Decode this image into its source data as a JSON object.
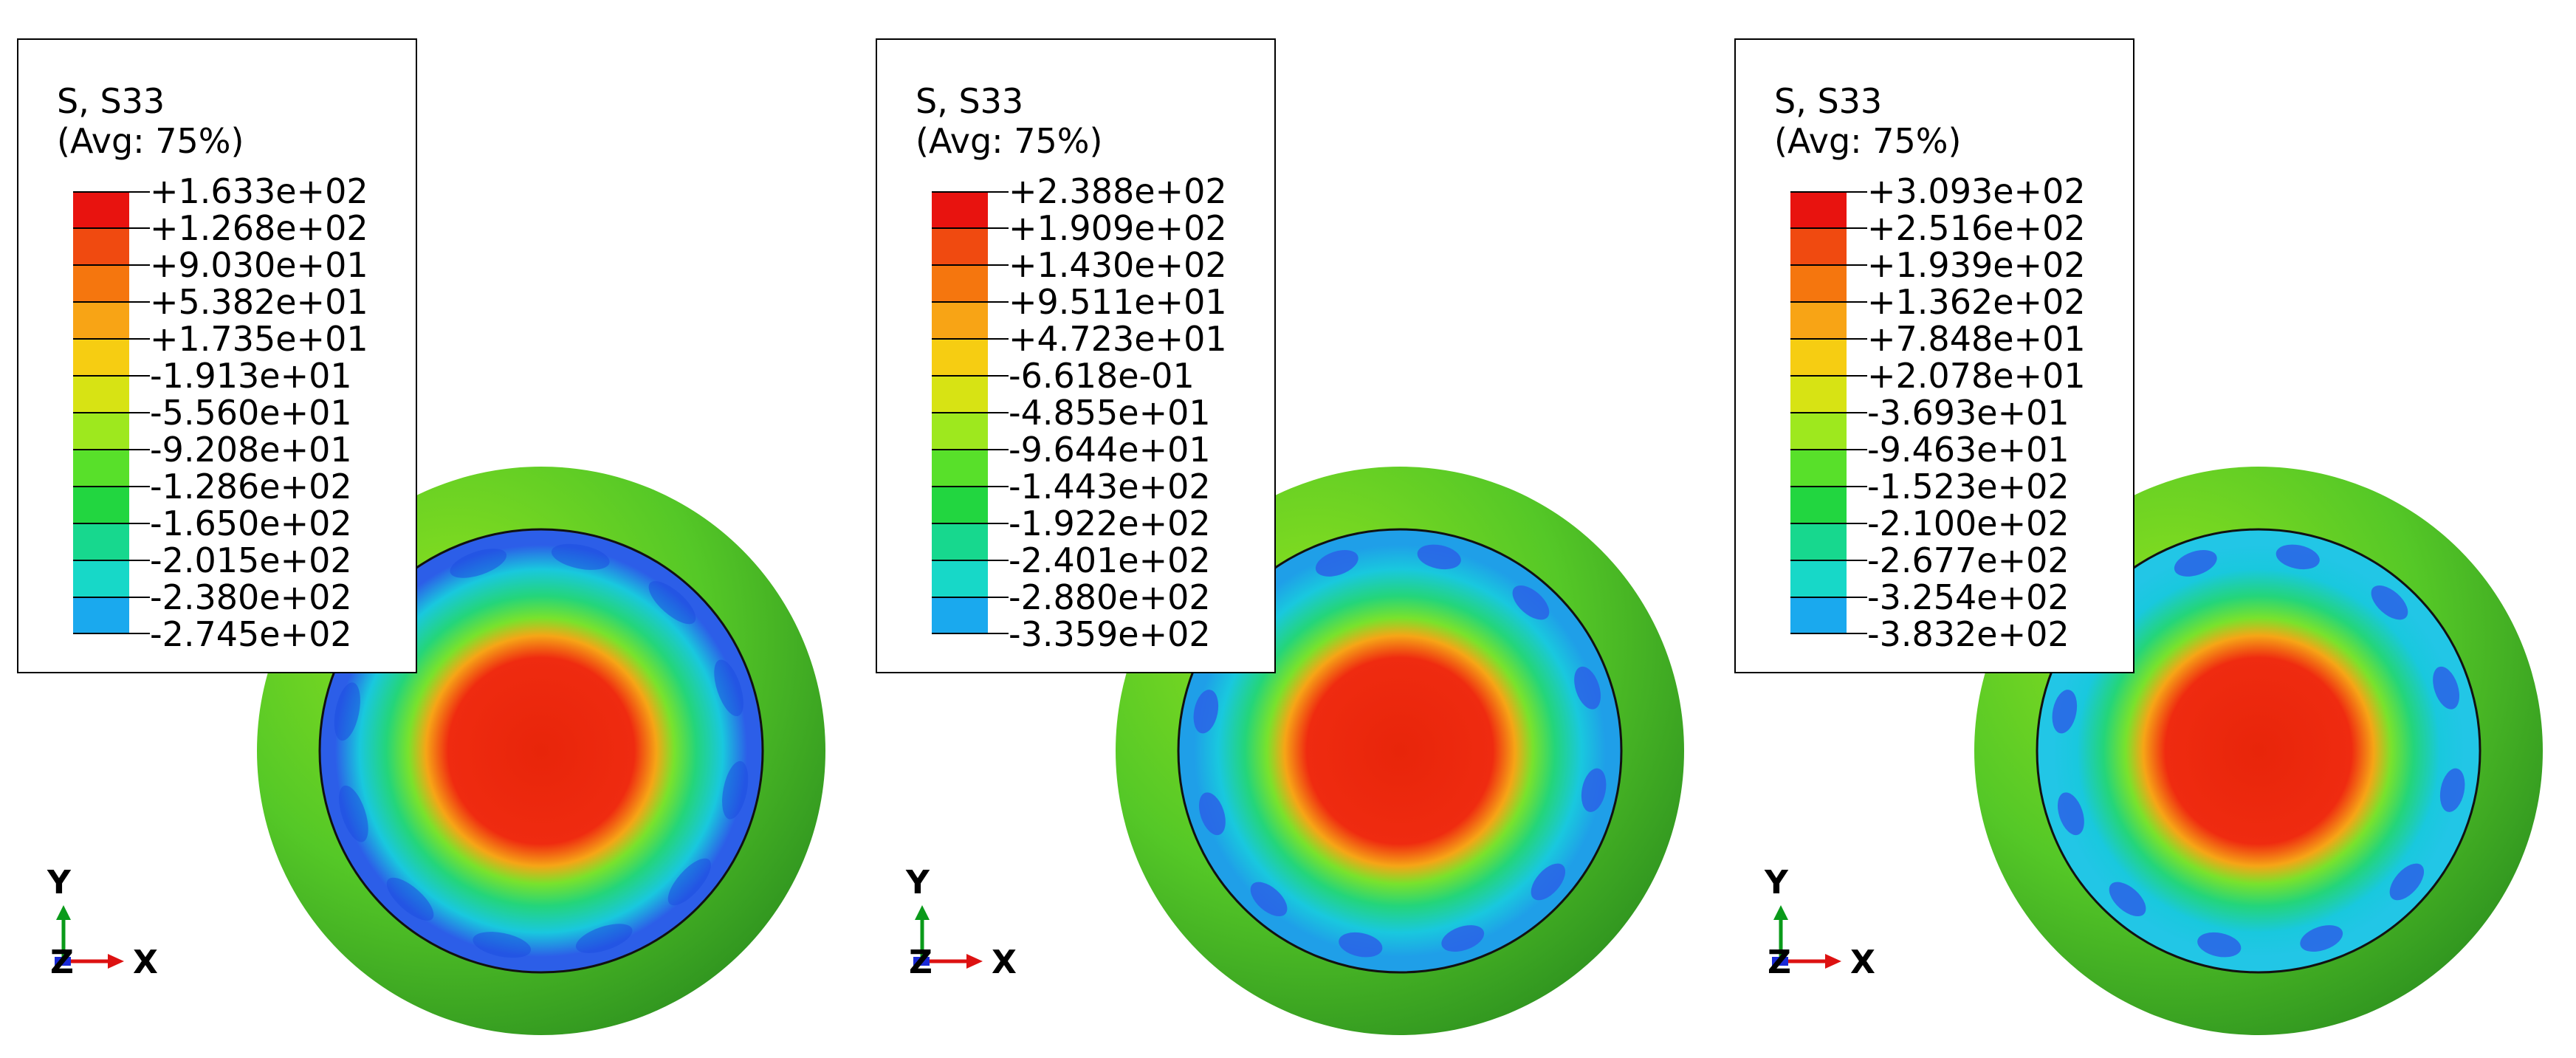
{
  "panels": [
    {
      "variable": "S, S33",
      "averaging": "(Avg: 75%)",
      "legend": [
        "+1.633e+02",
        "+1.268e+02",
        "+9.030e+01",
        "+5.382e+01",
        "+1.735e+01",
        "-1.913e+01",
        "-5.560e+01",
        "-9.208e+01",
        "-1.286e+02",
        "-1.650e+02",
        "-2.015e+02",
        "-2.380e+02",
        "-2.745e+02"
      ]
    },
    {
      "variable": "S, S33",
      "averaging": "(Avg: 75%)",
      "legend": [
        "+2.388e+02",
        "+1.909e+02",
        "+1.430e+02",
        "+9.511e+01",
        "+4.723e+01",
        "-6.618e-01",
        "-4.855e+01",
        "-9.644e+01",
        "-1.443e+02",
        "-1.922e+02",
        "-2.401e+02",
        "-2.880e+02",
        "-3.359e+02"
      ]
    },
    {
      "variable": "S, S33",
      "averaging": "(Avg: 75%)",
      "legend": [
        "+3.093e+02",
        "+2.516e+02",
        "+1.939e+02",
        "+1.362e+02",
        "+7.848e+01",
        "+2.078e+01",
        "-3.693e+01",
        "-9.463e+01",
        "-1.523e+02",
        "-2.100e+02",
        "-2.677e+02",
        "-3.254e+02",
        "-3.832e+02"
      ]
    }
  ],
  "color_bands": [
    "#e8130f",
    "#f04a10",
    "#f5760e",
    "#f8a415",
    "#f6cd12",
    "#d7e314",
    "#9ee81e",
    "#58e02a",
    "#22d640",
    "#17d88e",
    "#17d8c8",
    "#1aa9ee",
    "#2058e6"
  ],
  "triad": {
    "y": "Y",
    "z": "Z",
    "x": "X"
  }
}
